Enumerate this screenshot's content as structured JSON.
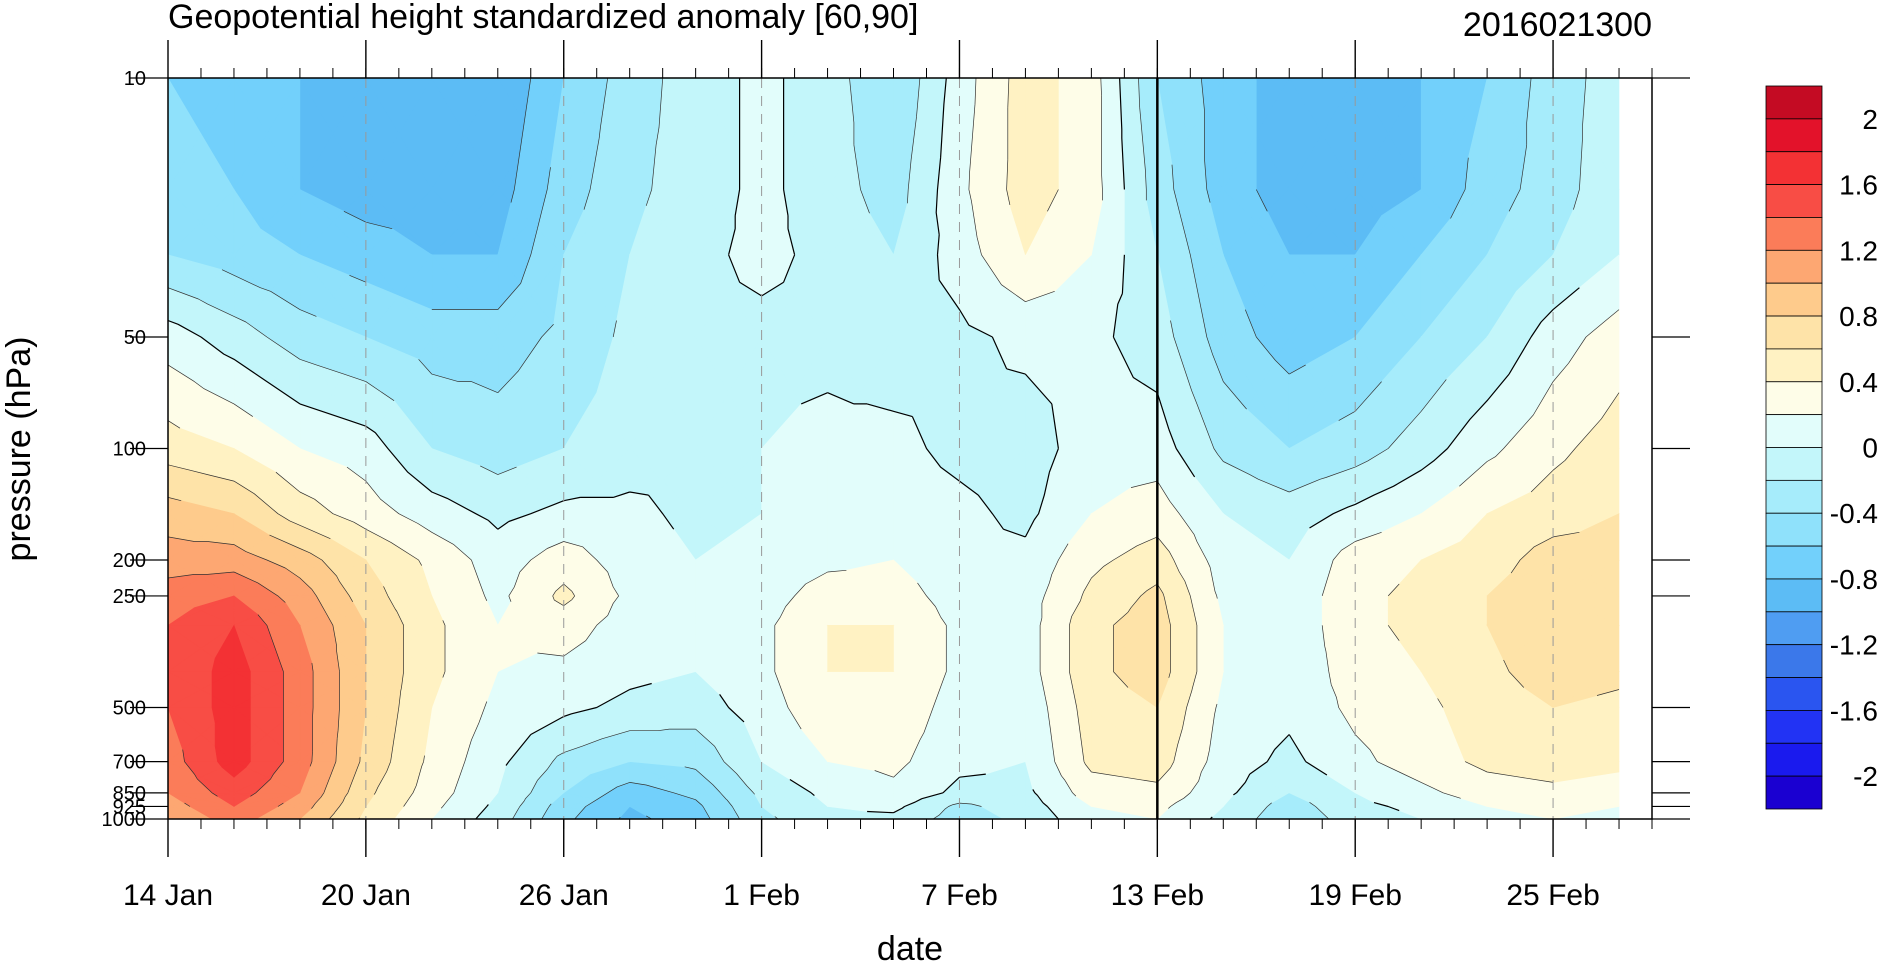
{
  "chart_data": {
    "type": "heatmap",
    "subtype": "filled-contour",
    "title": "Geopotential height standardized anomaly [60,90]",
    "run_label": "2016021300",
    "xlabel": "date",
    "ylabel": "pressure (hPa)",
    "x_ticks": [
      {
        "label": "14 Jan",
        "date": "2016-01-14"
      },
      {
        "label": "20 Jan",
        "date": "2016-01-20"
      },
      {
        "label": "26 Jan",
        "date": "2016-01-26"
      },
      {
        "label": "1 Feb",
        "date": "2016-02-01"
      },
      {
        "label": "7 Feb",
        "date": "2016-02-07"
      },
      {
        "label": "13 Feb",
        "date": "2016-02-13"
      },
      {
        "label": "19 Feb",
        "date": "2016-02-19"
      },
      {
        "label": "25 Feb",
        "date": "2016-02-25"
      }
    ],
    "xlim": [
      "2016-01-14",
      "2016-02-28"
    ],
    "y_scale": "log",
    "y_reversed": true,
    "ylim": [
      1000,
      10
    ],
    "y_ticks": [
      10,
      50,
      100,
      200,
      250,
      500,
      700,
      850,
      925,
      1000
    ],
    "y_tick_labels": [
      "10",
      "50",
      "100",
      "200",
      "250",
      "500",
      "700",
      "850",
      "925",
      "1000"
    ],
    "forecast_start_line": "2016-02-13",
    "colorbar": {
      "levels": [
        -2.2,
        -2.0,
        -1.8,
        -1.6,
        -1.4,
        -1.2,
        -1.0,
        -0.8,
        -0.6,
        -0.4,
        -0.2,
        0.0,
        0.2,
        0.4,
        0.6,
        0.8,
        1.0,
        1.2,
        1.4,
        1.6,
        1.8,
        2.0,
        2.2
      ],
      "colors": [
        "#1a00d1",
        "#1a1aee",
        "#2233f4",
        "#2a55f0",
        "#3b78ea",
        "#4f9df2",
        "#5cbcf5",
        "#72d0fb",
        "#8fe1fb",
        "#a6ecfb",
        "#c3f6fa",
        "#e2fdfb",
        "#fefde8",
        "#fff2c3",
        "#fee3a8",
        "#fecb8c",
        "#fda772",
        "#fb7c59",
        "#f84d45",
        "#f33134",
        "#e3122a",
        "#c40b23"
      ],
      "tick_labels": [
        "2",
        "1.6",
        "1.2",
        "0.8",
        "0.4",
        "0",
        "-0.4",
        "-0.8",
        "-1.2",
        "-1.6",
        "-2"
      ]
    },
    "columns_dates": [
      "2016-01-14",
      "2016-01-16",
      "2016-01-18",
      "2016-01-20",
      "2016-01-22",
      "2016-01-24",
      "2016-01-26",
      "2016-01-28",
      "2016-01-30",
      "2016-02-01",
      "2016-02-03",
      "2016-02-05",
      "2016-02-07",
      "2016-02-09",
      "2016-02-11",
      "2016-02-13",
      "2016-02-15",
      "2016-02-17",
      "2016-02-19",
      "2016-02-21",
      "2016-02-23",
      "2016-02-25",
      "2016-02-27"
    ],
    "rows_hPa": [
      10,
      20,
      30,
      50,
      100,
      150,
      200,
      250,
      300,
      400,
      500,
      700,
      850,
      925,
      1000
    ],
    "values": [
      [
        -0.6,
        -0.7,
        -0.8,
        -0.9,
        -1.0,
        -1.0,
        -0.6,
        -0.3,
        -0.1,
        0.05,
        -0.1,
        -0.4,
        0.1,
        0.5,
        0.3,
        -0.4,
        -0.7,
        -0.9,
        -1.0,
        -0.8,
        -0.6,
        -0.3,
        -0.1
      ],
      [
        -0.5,
        -0.6,
        -0.8,
        -0.9,
        -0.9,
        -0.9,
        -0.5,
        -0.25,
        -0.1,
        0.05,
        -0.1,
        -0.3,
        0.15,
        0.5,
        0.3,
        -0.3,
        -0.7,
        -0.9,
        -0.9,
        -0.8,
        -0.5,
        -0.3,
        -0.05
      ],
      [
        -0.4,
        -0.5,
        -0.6,
        -0.7,
        -0.8,
        -0.8,
        -0.4,
        -0.2,
        -0.05,
        0.05,
        -0.05,
        -0.2,
        0.1,
        0.4,
        0.2,
        -0.2,
        -0.6,
        -0.8,
        -0.8,
        -0.6,
        -0.4,
        -0.2,
        0.0
      ],
      [
        0.1,
        -0.1,
        -0.3,
        -0.4,
        -0.5,
        -0.5,
        -0.35,
        -0.15,
        -0.05,
        -0.05,
        -0.05,
        -0.1,
        -0.05,
        0.05,
        0.05,
        -0.1,
        -0.5,
        -0.7,
        -0.6,
        -0.4,
        -0.2,
        0.1,
        0.3
      ],
      [
        0.5,
        0.4,
        0.2,
        0.1,
        -0.2,
        -0.3,
        -0.2,
        -0.1,
        -0.05,
        0.0,
        0.05,
        0.05,
        -0.05,
        -0.1,
        0.1,
        0.1,
        -0.25,
        -0.4,
        -0.3,
        -0.1,
        0.15,
        0.35,
        0.5
      ],
      [
        0.9,
        0.8,
        0.5,
        0.3,
        0.1,
        -0.05,
        0.05,
        0.05,
        -0.05,
        0.0,
        0.1,
        0.1,
        0.05,
        -0.05,
        0.2,
        0.3,
        0.0,
        -0.1,
        0.05,
        0.2,
        0.4,
        0.5,
        0.6
      ],
      [
        1.1,
        1.1,
        0.9,
        0.6,
        0.35,
        0.1,
        0.3,
        0.1,
        0.0,
        0.05,
        0.15,
        0.2,
        0.05,
        0.05,
        0.35,
        0.5,
        0.1,
        0.0,
        0.3,
        0.4,
        0.5,
        0.7,
        0.7
      ],
      [
        1.3,
        1.4,
        1.1,
        0.7,
        0.4,
        0.15,
        0.45,
        0.15,
        0.0,
        0.1,
        0.3,
        0.3,
        0.1,
        0.1,
        0.45,
        0.65,
        0.15,
        0.05,
        0.35,
        0.45,
        0.6,
        0.75,
        0.8
      ],
      [
        1.4,
        1.6,
        1.2,
        0.8,
        0.45,
        0.2,
        0.3,
        0.1,
        0.05,
        0.15,
        0.4,
        0.4,
        0.15,
        0.1,
        0.55,
        0.7,
        0.2,
        0.05,
        0.35,
        0.45,
        0.6,
        0.75,
        0.75
      ],
      [
        1.4,
        1.7,
        1.3,
        0.8,
        0.45,
        0.2,
        0.15,
        0.05,
        0.0,
        0.15,
        0.4,
        0.4,
        0.15,
        0.1,
        0.55,
        0.7,
        0.2,
        0.05,
        0.3,
        0.4,
        0.55,
        0.7,
        0.65
      ],
      [
        1.4,
        1.7,
        1.3,
        0.8,
        0.4,
        0.15,
        0.05,
        -0.05,
        -0.1,
        0.1,
        0.35,
        0.35,
        0.1,
        0.05,
        0.5,
        0.6,
        0.15,
        0.05,
        0.25,
        0.35,
        0.5,
        0.6,
        0.55
      ],
      [
        1.3,
        1.7,
        1.3,
        0.75,
        0.35,
        0.05,
        -0.25,
        -0.4,
        -0.35,
        0.0,
        0.2,
        0.25,
        0.05,
        0.0,
        0.45,
        0.5,
        0.1,
        -0.05,
        0.15,
        0.3,
        0.45,
        0.5,
        0.45
      ],
      [
        1.2,
        1.5,
        1.2,
        0.65,
        0.3,
        0.0,
        -0.4,
        -0.7,
        -0.55,
        -0.15,
        0.05,
        0.15,
        -0.05,
        -0.05,
        0.3,
        0.35,
        0.05,
        -0.2,
        0.0,
        0.15,
        0.3,
        0.35,
        0.3
      ],
      [
        1.1,
        1.4,
        1.1,
        0.6,
        0.25,
        -0.05,
        -0.5,
        -0.8,
        -0.65,
        -0.2,
        0.0,
        0.05,
        -0.25,
        -0.1,
        0.2,
        0.25,
        0.0,
        -0.3,
        -0.05,
        0.05,
        0.2,
        0.25,
        0.2
      ],
      [
        1.0,
        1.3,
        1.0,
        0.55,
        0.2,
        -0.1,
        -0.55,
        -0.85,
        -0.7,
        -0.25,
        -0.05,
        -0.05,
        -0.3,
        -0.15,
        0.15,
        0.2,
        -0.05,
        -0.35,
        -0.1,
        0.0,
        0.15,
        0.2,
        0.15
      ]
    ]
  }
}
